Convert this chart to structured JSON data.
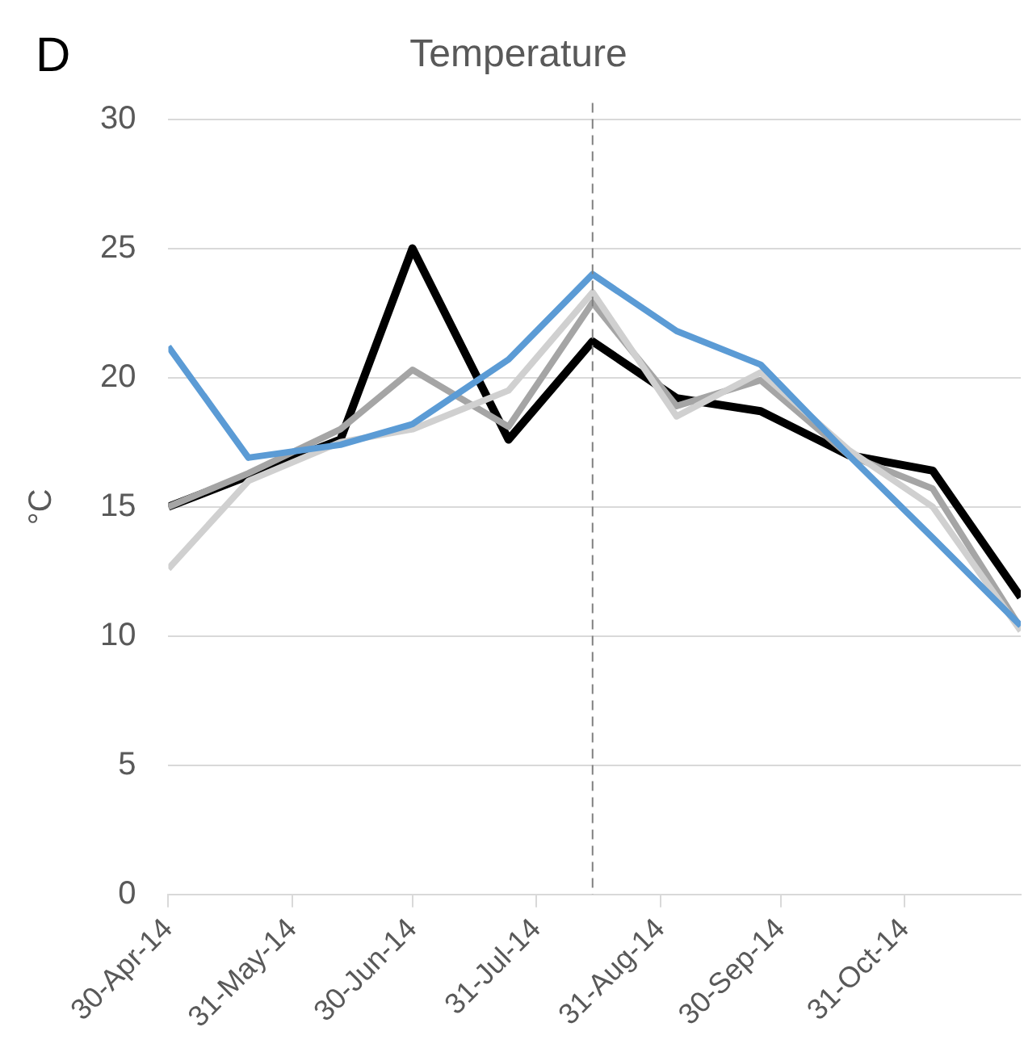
{
  "chart_data": {
    "type": "line",
    "title": "Temperature",
    "ylabel": "°C",
    "annotations": [
      "D"
    ],
    "x": [
      "2014-04-30",
      "2014-05-20",
      "2014-06-12",
      "2014-06-30",
      "2014-07-24",
      "2014-08-14",
      "2014-09-04",
      "2014-09-25",
      "2014-10-17",
      "2014-11-07",
      "2014-11-29"
    ],
    "series": [
      {
        "color": "#5b9bd5",
        "values": [
          21.2,
          16.9,
          17.4,
          18.2,
          20.7,
          24.0,
          21.8,
          20.5,
          17.0,
          13.8,
          10.4
        ]
      },
      {
        "color": "#d0d0d0",
        "values": [
          12.6,
          16.0,
          17.5,
          18.0,
          19.5,
          23.3,
          18.5,
          20.2,
          17.2,
          15.0,
          10.2
        ]
      },
      {
        "color": "#a5a5a5",
        "values": [
          15.0,
          16.3,
          18.0,
          20.3,
          18.1,
          22.9,
          18.9,
          19.9,
          17.0,
          15.7,
          10.3
        ]
      },
      {
        "color": "#000000",
        "values": [
          15.0,
          16.2,
          17.6,
          25.0,
          17.6,
          21.4,
          19.2,
          18.7,
          17.0,
          16.4,
          11.5
        ]
      }
    ],
    "xlim": [
      "2014-04-30",
      "2014-11-29"
    ],
    "xticks": [
      {
        "value": "2014-04-30",
        "label": "30-Apr-14"
      },
      {
        "value": "2014-05-31",
        "label": "31-May-14"
      },
      {
        "value": "2014-06-30",
        "label": "30-Jun-14"
      },
      {
        "value": "2014-07-31",
        "label": "31-Jul-14"
      },
      {
        "value": "2014-08-31",
        "label": "31-Aug-14"
      },
      {
        "value": "2014-09-30",
        "label": "30-Sep-14"
      },
      {
        "value": "2014-10-31",
        "label": "31-Oct-14"
      }
    ],
    "ylim": [
      0,
      30
    ],
    "yticks": [
      0,
      5,
      10,
      15,
      20,
      25,
      30
    ],
    "ref_lines": [
      {
        "axis": "x",
        "value": "2014-08-14",
        "color": "#808080",
        "line_style": "dashed"
      }
    ],
    "grid": "y",
    "legend": false,
    "marker": "none",
    "line_style": "solid"
  }
}
